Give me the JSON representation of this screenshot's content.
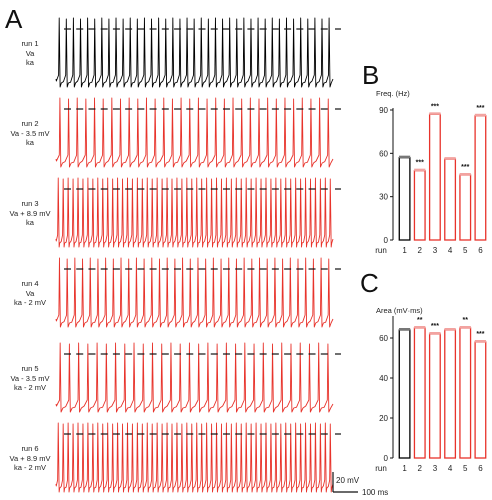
{
  "panels": {
    "a": "A",
    "b": "B",
    "c": "C"
  },
  "runs": [
    {
      "lines": [
        "run 1",
        "Va",
        "ka"
      ],
      "color": "#000000",
      "spikes": 39
    },
    {
      "lines": [
        "run 2",
        "Va - 3.5 mV",
        "ka"
      ],
      "color": "#e8332b",
      "spikes": 32
    },
    {
      "lines": [
        "run 3",
        "Va + 8.9 mV",
        "ka"
      ],
      "color": "#e8332b",
      "spikes": 56
    },
    {
      "lines": [
        "run 4",
        "Va",
        "ka - 2 mV"
      ],
      "color": "#e8332b",
      "spikes": 36
    },
    {
      "lines": [
        "run 5",
        "Va - 3.5 mV",
        "ka - 2 mV"
      ],
      "color": "#e8332b",
      "spikes": 30
    },
    {
      "lines": [
        "run 6",
        "Va + 8.9 mV",
        "ka - 2 mV"
      ],
      "color": "#e8332b",
      "spikes": 56
    }
  ],
  "scalebar": {
    "v_label": "20 mV",
    "t_label": "100 ms"
  },
  "chart_data": [
    {
      "type": "bar",
      "panel": "B",
      "ylabel": "Freq. (Hz)",
      "xlabel": "run",
      "categories": [
        "1",
        "2",
        "3",
        "4",
        "5",
        "6"
      ],
      "values": [
        57,
        48,
        87,
        56,
        45,
        86
      ],
      "ylim": [
        0,
        90
      ],
      "yticks": [
        0,
        30,
        60,
        90
      ],
      "significance": [
        "",
        "***",
        "***",
        "",
        "***",
        "***"
      ],
      "colors": [
        "#000000",
        "#e8332b",
        "#e8332b",
        "#e8332b",
        "#e8332b",
        "#e8332b"
      ]
    },
    {
      "type": "bar",
      "panel": "C",
      "ylabel": "Area (mV·ms)",
      "xlabel": "run",
      "categories": [
        "1",
        "2",
        "3",
        "4",
        "5",
        "6"
      ],
      "values": [
        64,
        65,
        62,
        64,
        65,
        58
      ],
      "ylim": [
        0,
        70
      ],
      "yticks": [
        0,
        20,
        40,
        60
      ],
      "significance": [
        "",
        "**",
        "***",
        "",
        "**",
        "***"
      ],
      "colors": [
        "#000000",
        "#e8332b",
        "#e8332b",
        "#e8332b",
        "#e8332b",
        "#e8332b"
      ]
    }
  ]
}
